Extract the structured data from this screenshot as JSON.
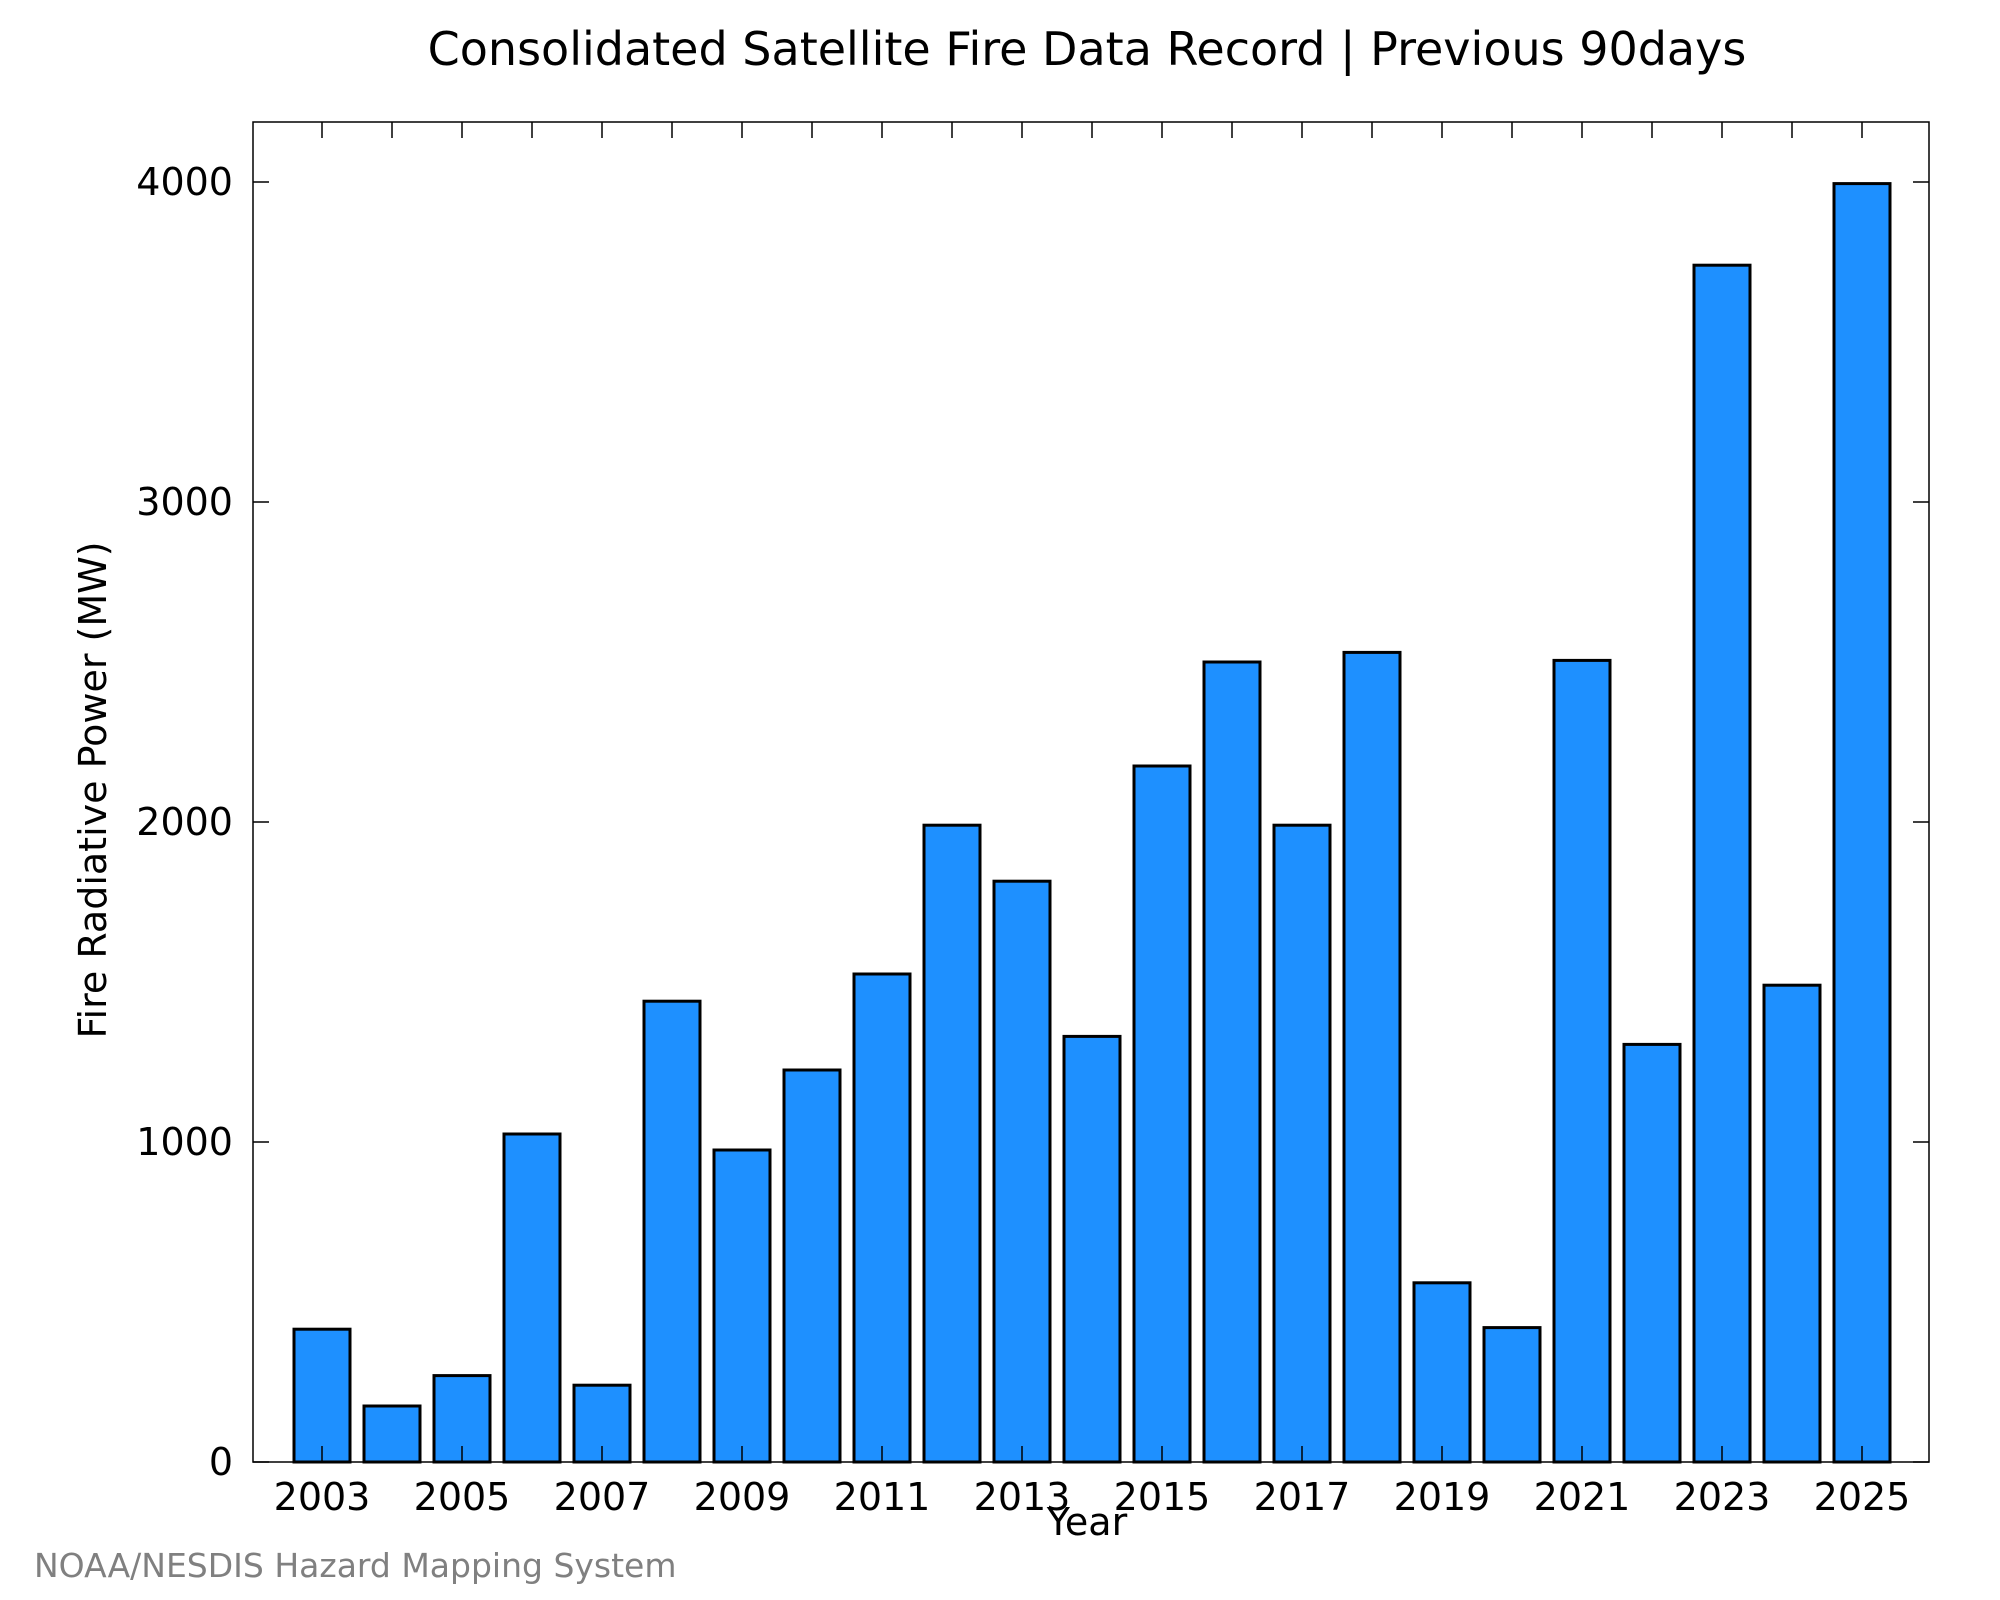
{
  "chart_data": {
    "type": "bar",
    "title": "Consolidated Satellite Fire Data Record | Previous 90days",
    "xlabel": "Year",
    "ylabel": "Fire Radiative Power (MW)",
    "credit": "NOAA/NESDIS Hazard Mapping System",
    "categories": [
      "2003",
      "2004",
      "2005",
      "2006",
      "2007",
      "2008",
      "2009",
      "2010",
      "2011",
      "2012",
      "2013",
      "2014",
      "2015",
      "2016",
      "2017",
      "2018",
      "2019",
      "2020",
      "2021",
      "2022",
      "2023",
      "2024",
      "2025"
    ],
    "x_tick_labels": [
      "2003",
      "2005",
      "2007",
      "2009",
      "2011",
      "2013",
      "2015",
      "2017",
      "2019",
      "2021",
      "2023",
      "2025"
    ],
    "values": [
      415,
      175,
      270,
      1025,
      240,
      1440,
      975,
      1225,
      1525,
      1990,
      1815,
      1330,
      2175,
      2500,
      1990,
      2530,
      560,
      420,
      2505,
      1305,
      3740,
      1490,
      3995
    ],
    "y_ticks": [
      0,
      1000,
      2000,
      3000,
      4000
    ],
    "ylim": [
      0,
      4190
    ],
    "bar_color": "#1E90FF",
    "bar_edge_color": "#000000",
    "grid": false,
    "legend": "none"
  }
}
